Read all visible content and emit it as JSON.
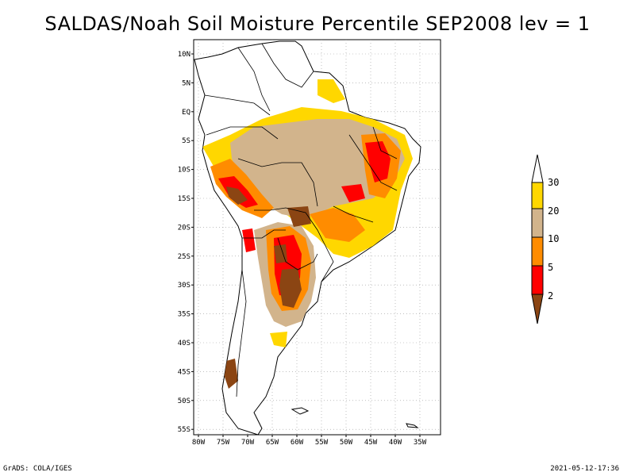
{
  "title": "SALDAS/Noah Soil Moisture Percentile SEP2008 lev = 1",
  "map": {
    "lat_labels": [
      "10N",
      "5N",
      "EQ",
      "5S",
      "10S",
      "15S",
      "20S",
      "25S",
      "30S",
      "35S",
      "40S",
      "45S",
      "50S",
      "55S"
    ],
    "lon_labels": [
      "80W",
      "75W",
      "70W",
      "65W",
      "60W",
      "55W",
      "50W",
      "45W",
      "40W",
      "35W"
    ],
    "grid": true
  },
  "colorbar": {
    "labels": [
      "2",
      "5",
      "10",
      "20",
      "30"
    ],
    "colors": {
      "below_2": "#8b4513",
      "2_5": "#ff0000",
      "5_10": "#ff8c00",
      "10_20": "#d2b48c",
      "20_30": "#ffd700",
      "above_30": "#ffffff"
    }
  },
  "footer": {
    "left": "GrADS: COLA/IGES",
    "right": "2021-05-12-17:36"
  }
}
